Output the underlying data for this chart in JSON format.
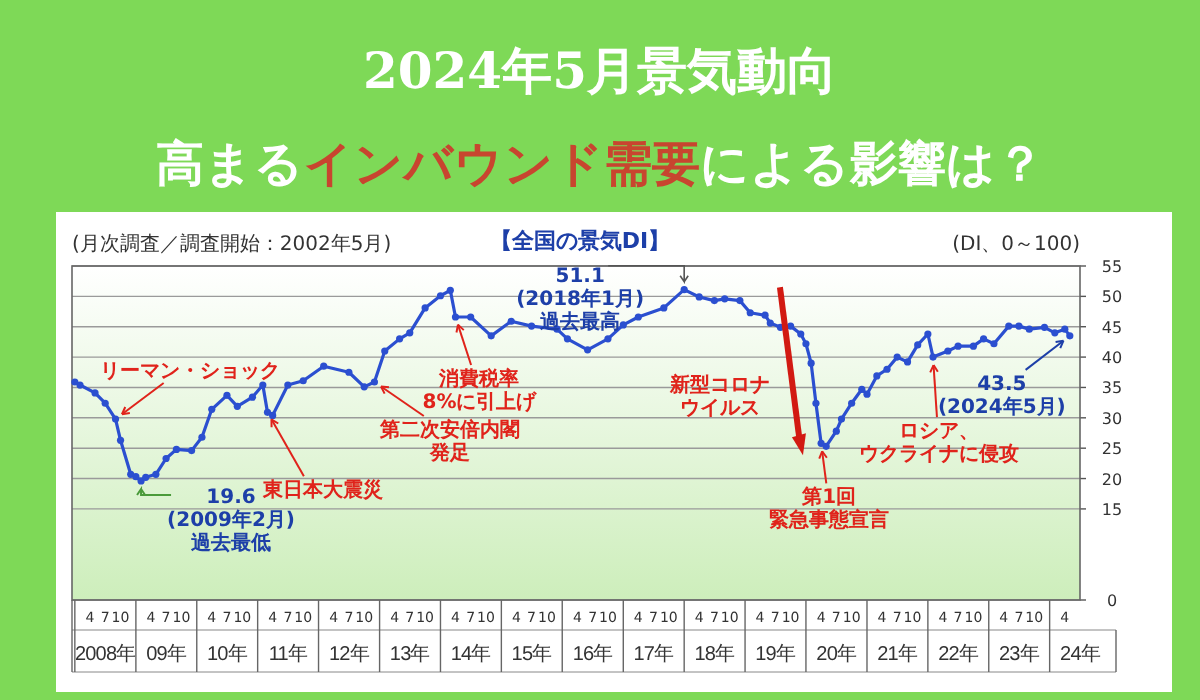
{
  "chart_data": {
    "type": "line",
    "title": "2024年5月景気動向",
    "subtitle": "高まる**インバウンド需要**による影響は？",
    "ylabel": "(DI、0～100)",
    "annotations": [
      "【全国の景気DI】",
      "(月次調査／調査開始：2002年5月)",
      {
        "text": "リーマン・ショック",
        "x": "2008-09",
        "y": 29.8
      },
      {
        "text": "19.6\n(2009年2月)\n過去最低",
        "x": "2009-02",
        "y": 19.6
      },
      {
        "text": "東日本大震災",
        "x": "2011-03",
        "y": 30.9
      },
      {
        "text": "消費税率8%に引上げ",
        "x": "2014-04",
        "y": 46.6
      },
      {
        "text": "第二次安倍内閣発足",
        "x": "2012-12",
        "y": 35.9
      },
      {
        "text": "51.1\n(2018年1月)\n過去最高",
        "x": "2018-01",
        "y": 51.1
      },
      {
        "text": "新型コロナウイルス",
        "x": "2020-03",
        "y": 32.4
      },
      {
        "text": "第1回緊急事態宣言",
        "x": "2020-04",
        "y": 25.8
      },
      {
        "text": "ロシア、ウクライナに侵攻",
        "x": "2022-02",
        "y": 40.0
      },
      {
        "text": "43.5\n(2024年5月)",
        "x": "2024-05",
        "y": 43.5
      }
    ],
    "x": [
      "2008-01",
      "2008-02",
      "2008-05",
      "2008-07",
      "2008-09",
      "2008-10",
      "2008-12",
      "2009-01",
      "2009-02",
      "2009-03",
      "2009-05",
      "2009-07",
      "2009-09",
      "2009-12",
      "2010-02",
      "2010-04",
      "2010-07",
      "2010-09",
      "2010-12",
      "2011-02",
      "2011-03",
      "2011-04",
      "2011-07",
      "2011-10",
      "2012-02",
      "2012-07",
      "2012-10",
      "2012-12",
      "2013-02",
      "2013-05",
      "2013-07",
      "2013-10",
      "2014-01",
      "2014-03",
      "2014-04",
      "2014-07",
      "2014-11",
      "2015-03",
      "2015-07",
      "2015-12",
      "2016-02",
      "2016-06",
      "2016-10",
      "2017-01",
      "2017-04",
      "2017-09",
      "2018-01",
      "2018-04",
      "2018-07",
      "2018-09",
      "2018-12",
      "2019-02",
      "2019-05",
      "2019-06",
      "2019-08",
      "2019-10",
      "2019-12",
      "2020-01",
      "2020-02",
      "2020-03",
      "2020-04",
      "2020-05",
      "2020-07",
      "2020-08",
      "2020-10",
      "2020-12",
      "2021-01",
      "2021-03",
      "2021-05",
      "2021-07",
      "2021-09",
      "2021-11",
      "2022-01",
      "2022-02",
      "2022-05",
      "2022-07",
      "2022-10",
      "2022-12",
      "2023-02",
      "2023-05",
      "2023-07",
      "2023-09",
      "2023-12",
      "2024-02",
      "2024-04",
      "2024-05"
    ],
    "series": [
      {
        "color": "#2b4fd0",
        "values": [
          35.9,
          35.4,
          34.1,
          32.4,
          29.8,
          26.3,
          20.7,
          20.3,
          19.6,
          20.2,
          20.7,
          23.3,
          24.8,
          24.6,
          26.8,
          31.4,
          33.7,
          31.9,
          33.4,
          35.4,
          30.9,
          30.4,
          35.4,
          36.1,
          38.5,
          37.5,
          35.1,
          35.9,
          41.0,
          43.0,
          44.0,
          48.1,
          50.1,
          51.0,
          46.6,
          46.6,
          43.5,
          45.9,
          45.1,
          44.6,
          43.0,
          41.2,
          43.0,
          45.3,
          46.6,
          48.1,
          51.1,
          49.9,
          49.3,
          49.6,
          49.3,
          47.3,
          46.9,
          45.6,
          44.9,
          45.1,
          43.8,
          42.2,
          39.0,
          32.4,
          25.8,
          25.3,
          27.8,
          29.8,
          32.4,
          34.7,
          33.9,
          36.9,
          38.0,
          40.0,
          39.2,
          42.0,
          43.8,
          40.0,
          41.0,
          41.8,
          41.8,
          43.0,
          42.2,
          45.1,
          45.1,
          44.6,
          44.9,
          44.0,
          44.6,
          43.5
        ]
      }
    ],
    "xlim": [
      "2007-12-15",
      "2024-07"
    ],
    "xticks": [
      {
        "value": "2008-04",
        "label": "4"
      },
      {
        "value": "2008-07",
        "label": "7"
      },
      {
        "value": "2008-10",
        "label": "10"
      },
      {
        "value": "2009-04",
        "label": "4"
      },
      {
        "value": "2009-07",
        "label": "7"
      },
      {
        "value": "2009-10",
        "label": "10"
      },
      {
        "value": "2010-04",
        "label": "4"
      },
      {
        "value": "2010-07",
        "label": "7"
      },
      {
        "value": "2010-10",
        "label": "10"
      },
      {
        "value": "2011-04",
        "label": "4"
      },
      {
        "value": "2011-07",
        "label": "7"
      },
      {
        "value": "2011-10",
        "label": "10"
      },
      {
        "value": "2012-04",
        "label": "4"
      },
      {
        "value": "2012-07",
        "label": "7"
      },
      {
        "value": "2012-10",
        "label": "10"
      },
      {
        "value": "2013-04",
        "label": "4"
      },
      {
        "value": "2013-07",
        "label": "7"
      },
      {
        "value": "2013-10",
        "label": "10"
      },
      {
        "value": "2014-04",
        "label": "4"
      },
      {
        "value": "2014-07",
        "label": "7"
      },
      {
        "value": "2014-10",
        "label": "10"
      },
      {
        "value": "2015-04",
        "label": "4"
      },
      {
        "value": "2015-07",
        "label": "7"
      },
      {
        "value": "2015-10",
        "label": "10"
      },
      {
        "value": "2016-04",
        "label": "4"
      },
      {
        "value": "2016-07",
        "label": "7"
      },
      {
        "value": "2016-10",
        "label": "10"
      },
      {
        "value": "2017-04",
        "label": "4"
      },
      {
        "value": "2017-07",
        "label": "7"
      },
      {
        "value": "2017-10",
        "label": "10"
      },
      {
        "value": "2018-04",
        "label": "4"
      },
      {
        "value": "2018-07",
        "label": "7"
      },
      {
        "value": "2018-10",
        "label": "10"
      },
      {
        "value": "2019-04",
        "label": "4"
      },
      {
        "value": "2019-07",
        "label": "7"
      },
      {
        "value": "2019-10",
        "label": "10"
      },
      {
        "value": "2020-04",
        "label": "4"
      },
      {
        "value": "2020-07",
        "label": "7"
      },
      {
        "value": "2020-10",
        "label": "10"
      },
      {
        "value": "2021-04",
        "label": "4"
      },
      {
        "value": "2021-07",
        "label": "7"
      },
      {
        "value": "2021-10",
        "label": "10"
      },
      {
        "value": "2022-04",
        "label": "4"
      },
      {
        "value": "2022-07",
        "label": "7"
      },
      {
        "value": "2022-10",
        "label": "10"
      },
      {
        "value": "2023-04",
        "label": "4"
      },
      {
        "value": "2023-07",
        "label": "7"
      },
      {
        "value": "2023-10",
        "label": "10"
      },
      {
        "value": "2024-04",
        "label": "4"
      }
    ],
    "x2lim": [
      "2007-12-15",
      "2024-07"
    ],
    "x2ticks": [
      {
        "value": "2008-07",
        "label": "2008年"
      },
      {
        "value": "2009-07",
        "label": "09年"
      },
      {
        "value": "2010-07",
        "label": "10年"
      },
      {
        "value": "2011-07",
        "label": "11年"
      },
      {
        "value": "2012-07",
        "label": "12年"
      },
      {
        "value": "2013-07",
        "label": "13年"
      },
      {
        "value": "2014-07",
        "label": "14年"
      },
      {
        "value": "2015-07",
        "label": "15年"
      },
      {
        "value": "2016-07",
        "label": "16年"
      },
      {
        "value": "2017-07",
        "label": "17年"
      },
      {
        "value": "2018-07",
        "label": "18年"
      },
      {
        "value": "2019-07",
        "label": "19年"
      },
      {
        "value": "2020-07",
        "label": "20年"
      },
      {
        "value": "2021-07",
        "label": "21年"
      },
      {
        "value": "2022-07",
        "label": "22年"
      },
      {
        "value": "2023-07",
        "label": "23年"
      },
      {
        "value": "2024-07",
        "label": "24年"
      }
    ],
    "ylim": [
      0,
      55
    ],
    "yticks": [
      0,
      15,
      20,
      25,
      30,
      35,
      40,
      45,
      50,
      55
    ],
    "grid": "y",
    "marker": "circle",
    "line_style": "solid"
  }
}
